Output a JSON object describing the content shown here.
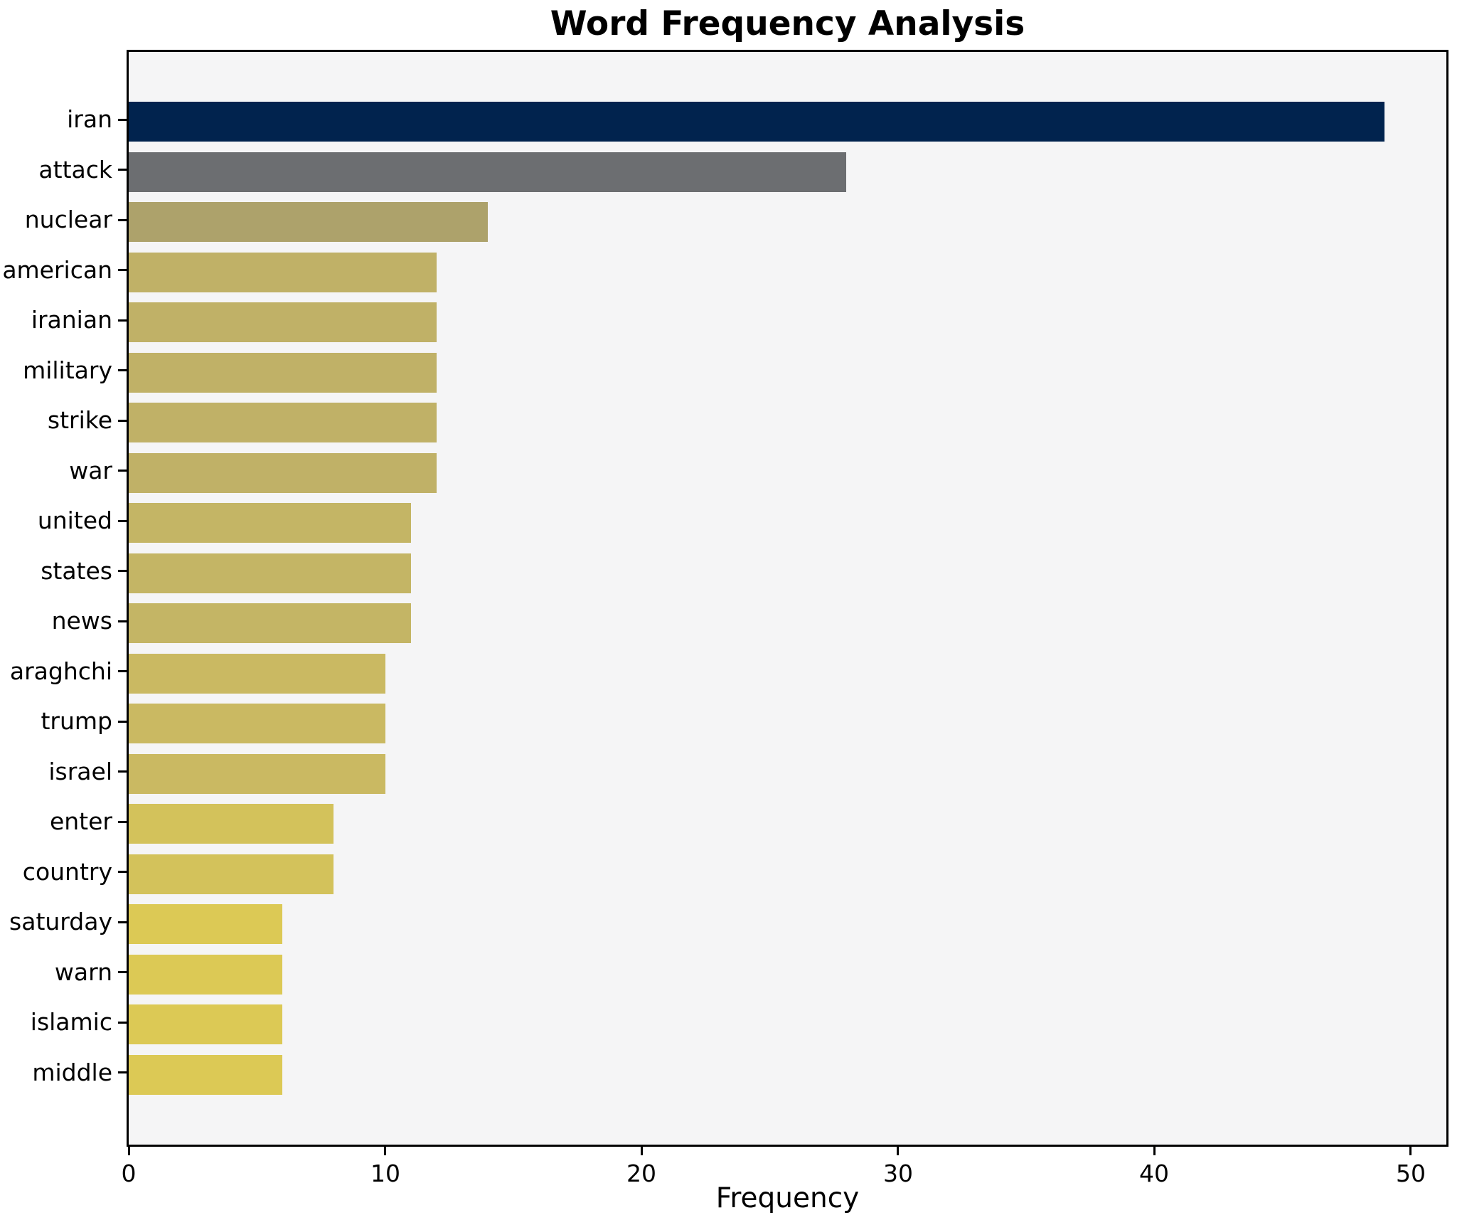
{
  "title": "Word Frequency Analysis",
  "x_axis": {
    "label": "Frequency",
    "tick_labels": [
      "0",
      "10",
      "20",
      "30",
      "40",
      "50"
    ]
  },
  "chart_data": {
    "type": "bar",
    "orientation": "horizontal",
    "title": "Word Frequency Analysis",
    "xlabel": "Frequency",
    "ylabel": "",
    "categories": [
      "iran",
      "attack",
      "nuclear",
      "american",
      "iranian",
      "military",
      "strike",
      "war",
      "united",
      "states",
      "news",
      "araghchi",
      "trump",
      "israel",
      "enter",
      "country",
      "saturday",
      "warn",
      "islamic",
      "middle"
    ],
    "values": [
      49,
      28,
      14,
      12,
      12,
      12,
      12,
      12,
      11,
      11,
      11,
      10,
      10,
      10,
      8,
      8,
      6,
      6,
      6,
      6
    ],
    "bar_colors": [
      "#01234e",
      "#6c6e71",
      "#ada26b",
      "#c0b167",
      "#c0b167",
      "#c0b167",
      "#c0b167",
      "#c0b167",
      "#c4b565",
      "#c4b565",
      "#c4b565",
      "#cab962",
      "#cab962",
      "#cab962",
      "#d3c25b",
      "#d3c25b",
      "#dcc955",
      "#dcc955",
      "#dcc955",
      "#dcc955"
    ],
    "xlim": [
      0,
      51.4
    ],
    "x_ticks": [
      0,
      10,
      20,
      30,
      40,
      50
    ],
    "grid": false,
    "legend": false,
    "plot_background": "#f5f5f6",
    "figure_background": "#ffffff",
    "spine_color": "#000000"
  }
}
